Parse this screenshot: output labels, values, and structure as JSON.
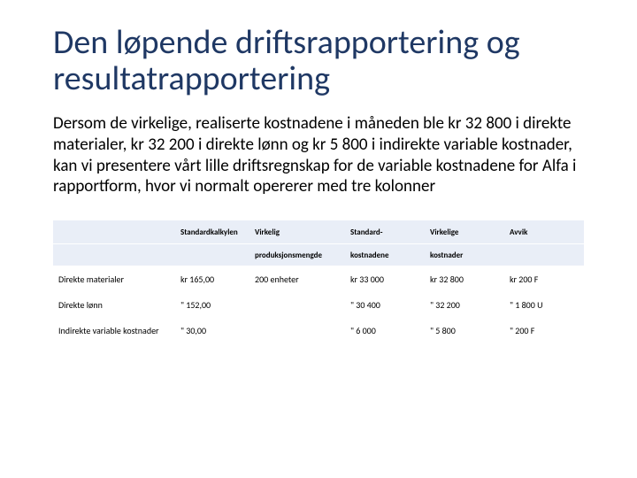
{
  "title": "Den løpende driftsrapportering og resultatrapportering",
  "body": "Dersom de virkelige, realiserte kostnadene i måneden ble kr 32 800 i direkte materialer, kr 32 200 i direkte lønn og kr 5 800 i indirekte variable kostnader, kan vi presentere vårt lille driftsregnskap for de variable kostnadene for Alfa i rapportform, hvor vi normalt opererer med tre kolonner",
  "table": {
    "type": "table",
    "header_bg": "#e9eef7",
    "header_fontsize": 9,
    "body_fontsize": 10,
    "columns": [
      {
        "key": "label",
        "h1": "",
        "h2": "",
        "width_pct": 23
      },
      {
        "key": "std",
        "h1": "Standardkalkylen",
        "h2": "",
        "width_pct": 14
      },
      {
        "key": "virk",
        "h1": "Virkelig",
        "h2": "produksjonsmengde",
        "width_pct": 18
      },
      {
        "key": "stdk",
        "h1": "Standard-",
        "h2": "kostnadene",
        "width_pct": 15
      },
      {
        "key": "vkost",
        "h1": "Virkelige",
        "h2": "kostnader",
        "width_pct": 15
      },
      {
        "key": "avvik",
        "h1": "Avvik",
        "h2": "",
        "width_pct": 15
      }
    ],
    "rows": [
      {
        "label": "Direkte materialer",
        "std": "kr 165,00",
        "virk": "200 enheter",
        "stdk": "kr 33 000",
        "vkost": "kr 32 800",
        "avvik": "kr    200 F"
      },
      {
        "label": "Direkte lønn",
        "std": "\"  152,00",
        "virk": "",
        "stdk": "\"  30 400",
        "vkost": "\"  32 200",
        "avvik": "\"  1 800 U"
      },
      {
        "label": "Indirekte variable kostnader",
        "std": "\"    30,00",
        "virk": "",
        "stdk": "\"    6 000",
        "vkost": "\"    5 800",
        "avvik": "\"     200 F"
      }
    ]
  },
  "colors": {
    "title": "#1f3864",
    "body_text": "#000000",
    "background": "#ffffff",
    "table_header_bg": "#e9eef7"
  },
  "typography": {
    "title_fontsize_pt": 28,
    "body_fontsize_pt": 14,
    "font_family": "Calibri"
  }
}
